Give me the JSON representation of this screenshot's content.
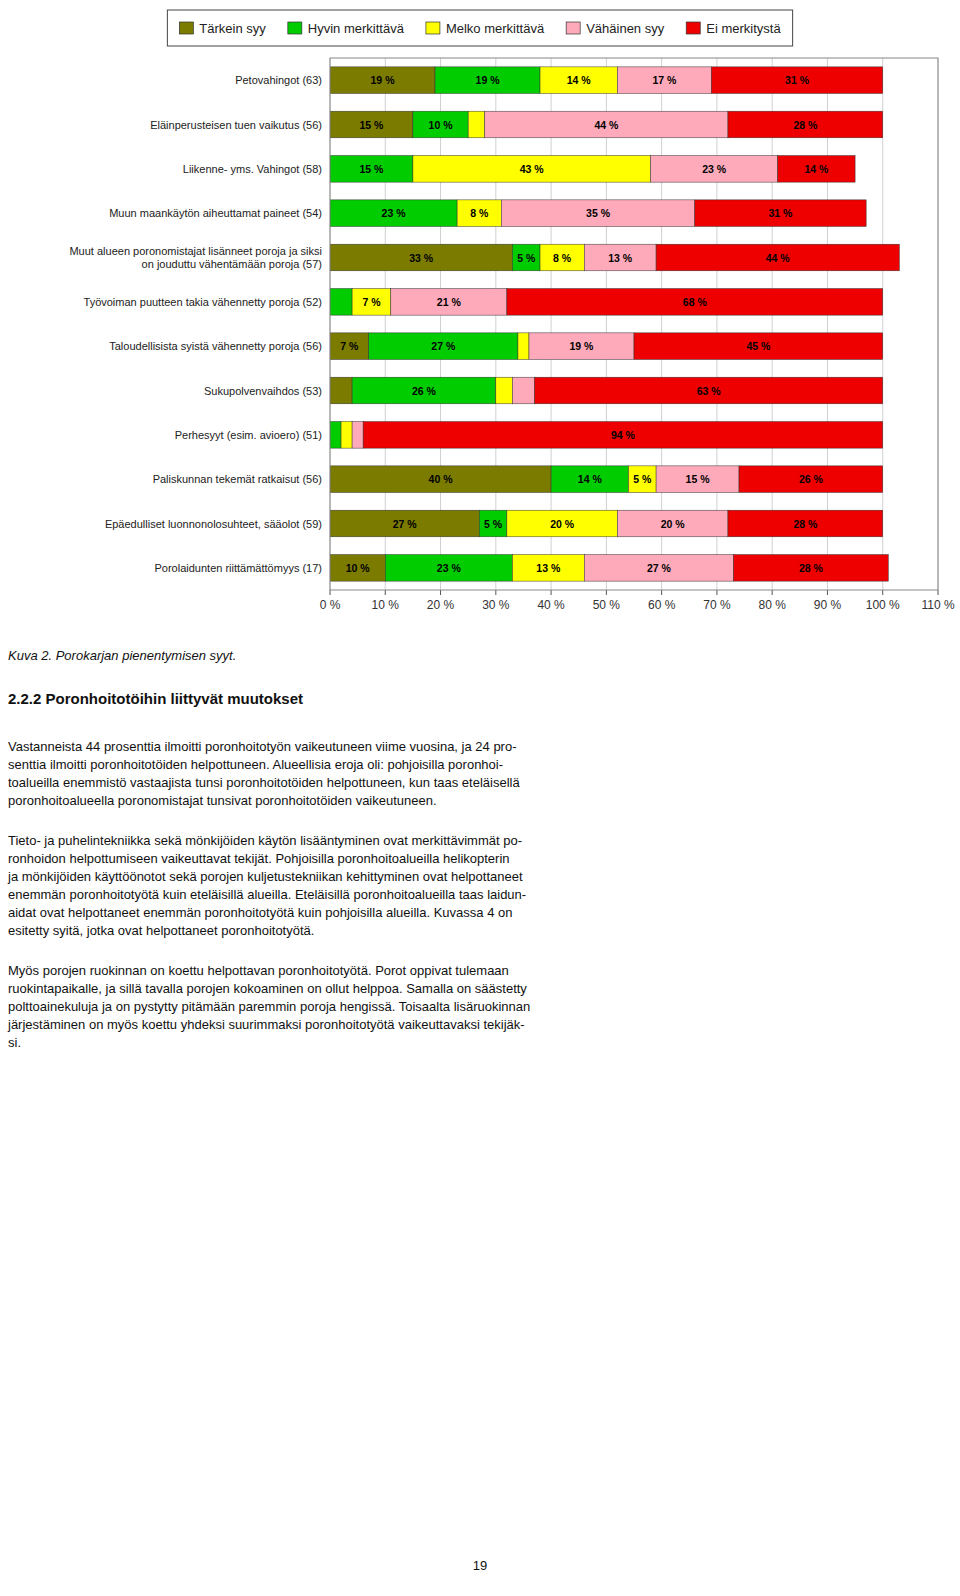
{
  "chart_data": {
    "type": "bar",
    "orientation": "horizontal",
    "stacked": true,
    "title": "Kuva 2. Porokarjan pienentymisen syyt.",
    "categories": [
      "Petovahingot (63)",
      "Eläinperusteisen tuen vaikutus (56)",
      "Liikenne- yms. Vahingot (58)",
      "Muun maankäytön aiheuttamat paineet (54)",
      "Muut alueen poronomistajat lisänneet poroja ja siksi\non jouduttu vähentämään poroja (57)",
      "Työvoiman puutteen takia vähennetty poroja (52)",
      "Taloudellisista syistä vähennetty poroja (56)",
      "Sukupolvenvaihdos (53)",
      "Perhesyyt (esim. avioero) (51)",
      "Paliskunnan tekemät ratkaisut (56)",
      "Epäedulliset luonnonolosuhteet, sääolot (59)",
      "Porolaidunten riittämättömyys (17)"
    ],
    "series": [
      {
        "name": "Tärkein syy",
        "color": "#7b7b00",
        "values": [
          19,
          15,
          0,
          0,
          33,
          0,
          7,
          4,
          0,
          40,
          27,
          10
        ],
        "value_labels": [
          "19 %",
          "15 %",
          null,
          null,
          "33 %",
          null,
          "7 %",
          null,
          null,
          "40 %",
          "27 %",
          "10 %"
        ]
      },
      {
        "name": "Hyvin merkittävä",
        "color": "#00cc00",
        "values": [
          19,
          10,
          15,
          23,
          5,
          4,
          27,
          26,
          2,
          14,
          5,
          23
        ],
        "value_labels": [
          "19 %",
          "10 %",
          "15 %",
          "23 %",
          "5 %",
          null,
          "27 %",
          "26 %",
          null,
          "14 %",
          "5 %",
          "23 %"
        ]
      },
      {
        "name": "Melko merkittävä",
        "color": "#ffff00",
        "values": [
          14,
          3,
          43,
          8,
          8,
          7,
          2,
          3,
          2,
          5,
          20,
          13
        ],
        "value_labels": [
          "14 %",
          null,
          "43 %",
          "8 %",
          "8 %",
          "7 %",
          null,
          null,
          null,
          "5 %",
          "20 %",
          "13 %"
        ]
      },
      {
        "name": "Vähäinen syy",
        "color": "#ffaabb",
        "values": [
          17,
          44,
          23,
          35,
          13,
          21,
          19,
          4,
          2,
          15,
          20,
          27
        ],
        "value_labels": [
          "17 %",
          "44 %",
          "23 %",
          "35 %",
          "13 %",
          "21 %",
          "19 %",
          null,
          null,
          "15 %",
          "20 %",
          "27 %"
        ]
      },
      {
        "name": "Ei merkitystä",
        "color": "#ee0000",
        "values": [
          31,
          28,
          14,
          31,
          44,
          68,
          45,
          63,
          94,
          26,
          28,
          28
        ],
        "value_labels": [
          "31 %",
          "28 %",
          "14 %",
          "31 %",
          "44 %",
          "68 %",
          "45 %",
          "63 %",
          "94 %",
          "26 %",
          "28 %",
          "28 %"
        ]
      }
    ],
    "data_labels": true,
    "xlim": [
      0,
      110
    ],
    "xticks": [
      {
        "value": 0,
        "label": "0 %"
      },
      {
        "value": 10,
        "label": "10 %"
      },
      {
        "value": 20,
        "label": "20 %"
      },
      {
        "value": 30,
        "label": "30 %"
      },
      {
        "value": 40,
        "label": "40 %"
      },
      {
        "value": 50,
        "label": "50 %"
      },
      {
        "value": 60,
        "label": "60 %"
      },
      {
        "value": 70,
        "label": "70 %"
      },
      {
        "value": 80,
        "label": "80 %"
      },
      {
        "value": 90,
        "label": "90 %"
      },
      {
        "value": 100,
        "label": "100 %"
      },
      {
        "value": 110,
        "label": "110 %"
      }
    ],
    "grid": true,
    "legend": "top",
    "annotations": [
      "2.2.2  Poronhoitotöihin liittyvät muutokset",
      "Vastanneista 44 prosenttia ilmoitti poronhoitotyön vaikeutuneen viime vuosina, ja 24 pro-\nsenttia ilmoitti poronhoitotöiden helpottuneen. Alueellisia eroja oli: pohjoisilla poronhoi-\ntoalueilla enemmistö vastaajista tunsi poronhoitotöiden helpottuneen, kun taas eteläisellä\nporonhoitoalueella poronomistajat tunsivat poronhoitotöiden vaikeutuneen.",
      "Tieto- ja puhelintekniikka sekä mönkijöiden käytön lisääntyminen ovat merkittävimmät po-\nronhoidon helpottumiseen vaikeuttavat tekijät. Pohjoisilla poronhoitoalueilla helikopterin\nja mönkijöiden käyttöönotot sekä porojen kuljetustekniikan kehittyminen ovat helpottaneet\nenemmän poronhoitotyötä kuin eteläisillä alueilla. Eteläisillä poronhoitoalueilla taas laidun-\naidat ovat helpottaneet enemmän poronhoitotyötä kuin pohjoisilla alueilla. Kuvassa 4 on\nesitetty syitä, jotka ovat helpottaneet poronhoitotyötä.",
      "Myös porojen ruokinnan on koettu helpottavan poronhoitotyötä. Porot oppivat tulemaan\nruokintapaikalle, ja sillä tavalla porojen kokoaminen on ollut helppoa. Samalla on säästetty\npolttoainekuluja ja on pystytty pitämään paremmin poroja hengissä. Toisaalta lisäruokinnan\njärjestäminen on myös koettu yhdeksi suurimmaksi poronhoitotyötä vaikeuttavaksi tekijäk-\nsi.",
      "19"
    ]
  }
}
